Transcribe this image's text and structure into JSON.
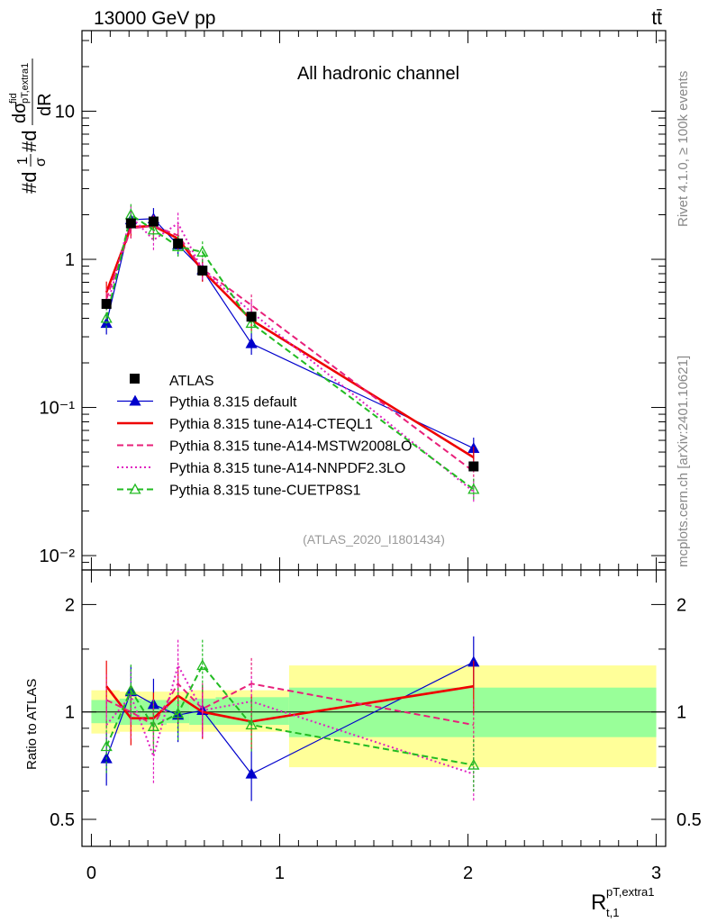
{
  "header": {
    "energy_label": "13000 GeV pp",
    "process_label": "tt̄",
    "channel_label": "All hadronic channel",
    "analysis_label": "(ATLAS_2020_I1801434)",
    "side_rivet": "Rivet 4.1.0, ≥ 100k events",
    "side_mcplots": "mcplots.cern.ch [arXiv:2401.10621]"
  },
  "chart_data": [
    {
      "type": "line",
      "panel": "main",
      "ylabel": "#dσ/#dR (normalized)",
      "yscale": "log",
      "ylim": [
        0.008,
        35
      ],
      "xlim": [
        -0.05,
        3.05
      ],
      "y_tick_labels": [
        "10⁻²",
        "10⁻¹",
        "1",
        "10"
      ],
      "x": [
        0.08,
        0.21,
        0.33,
        0.46,
        0.59,
        0.85,
        2.03
      ],
      "data": {
        "name": "ATLAS",
        "values": [
          0.5,
          1.75,
          1.8,
          1.28,
          0.84,
          0.41,
          0.04
        ]
      },
      "series": [
        {
          "name": "Pythia 8.315 default",
          "color": "#0000cc",
          "style": "solid",
          "marker": "triangle-filled",
          "values": [
            0.37,
            1.85,
            1.88,
            1.25,
            0.85,
            0.27,
            0.053
          ]
        },
        {
          "name": "Pythia 8.315 tune-A14-CTEQL1",
          "color": "#ee0000",
          "style": "solid-thick",
          "marker": "none",
          "values": [
            0.6,
            1.65,
            1.68,
            1.38,
            0.84,
            0.39,
            0.046
          ]
        },
        {
          "name": "Pythia 8.315 tune-A14-MSTW2008LO",
          "color": "#e8207a",
          "style": "dashed",
          "marker": "none",
          "values": [
            0.54,
            1.62,
            1.68,
            1.45,
            0.86,
            0.49,
            0.037
          ]
        },
        {
          "name": "Pythia 8.315 tune-A14-NNPDF2.3LO",
          "color": "#e020c0",
          "style": "dotted",
          "marker": "none",
          "values": [
            0.46,
            1.95,
            1.35,
            1.75,
            0.85,
            0.44,
            0.027
          ]
        },
        {
          "name": "Pythia 8.315 tune-CUETP8S1",
          "color": "#22bb22",
          "style": "dashed",
          "marker": "triangle-open",
          "values": [
            0.4,
            2.0,
            1.58,
            1.22,
            1.12,
            0.37,
            0.028
          ]
        }
      ],
      "legend": [
        "ATLAS",
        "Pythia 8.315 default",
        "Pythia 8.315 tune-A14-CTEQL1",
        "Pythia 8.315 tune-A14-MSTW2008LO",
        "Pythia 8.315 tune-A14-NNPDF2.3LO",
        "Pythia 8.315 tune-CUETP8S1"
      ],
      "legend_position": "bottom-left"
    },
    {
      "type": "line",
      "panel": "ratio",
      "ylabel": "Ratio to ATLAS",
      "yscale": "log",
      "ylim": [
        0.42,
        2.5
      ],
      "y_tick_labels": [
        "0.5",
        "1",
        "2"
      ],
      "xlabel": "R t,1 pT,extra1",
      "x_tick_labels": [
        "0",
        "1",
        "2",
        "3"
      ],
      "x": [
        0.08,
        0.21,
        0.33,
        0.46,
        0.59,
        0.85,
        2.03
      ],
      "band_edges": [
        0.0,
        0.15,
        0.27,
        0.4,
        0.52,
        0.66,
        1.05,
        3.0
      ],
      "band_stat_lo": [
        0.93,
        0.92,
        0.92,
        0.93,
        0.92,
        0.92,
        0.85
      ],
      "band_stat_hi": [
        1.08,
        1.09,
        1.08,
        1.08,
        1.09,
        1.1,
        1.17
      ],
      "band_tot_lo": [
        0.87,
        0.88,
        0.88,
        0.88,
        0.88,
        0.88,
        0.7
      ],
      "band_tot_hi": [
        1.15,
        1.14,
        1.14,
        1.14,
        1.15,
        1.15,
        1.35
      ],
      "series": [
        {
          "name": "Pythia 8.315 default",
          "values": [
            0.74,
            1.14,
            1.05,
            0.98,
            1.01,
            0.67,
            1.38
          ]
        },
        {
          "name": "Pythia 8.315 tune-A14-CTEQL1",
          "values": [
            1.18,
            0.96,
            0.96,
            1.11,
            1.0,
            0.94,
            1.18
          ]
        },
        {
          "name": "Pythia 8.315 tune-A14-MSTW2008LO",
          "values": [
            1.08,
            1.0,
            0.92,
            1.2,
            1.02,
            1.2,
            0.92
          ]
        },
        {
          "name": "Pythia 8.315 tune-A14-NNPDF2.3LO",
          "values": [
            0.92,
            1.11,
            0.75,
            1.35,
            1.01,
            1.07,
            0.67
          ]
        },
        {
          "name": "Pythia 8.315 tune-CUETP8S1",
          "values": [
            0.8,
            1.15,
            0.91,
            0.99,
            1.35,
            0.92,
            0.71
          ]
        }
      ]
    }
  ]
}
